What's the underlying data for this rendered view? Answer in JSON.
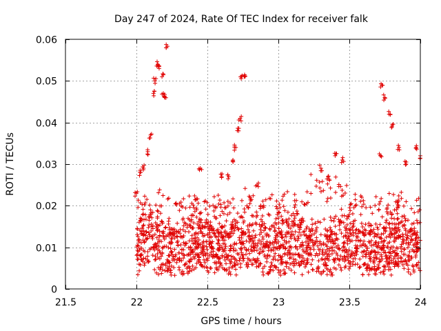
{
  "chart_data": {
    "type": "scatter",
    "title": "Day 247 of 2024, Rate Of TEC Index for receiver falk",
    "xlabel": "GPS time / hours",
    "ylabel": "ROTI / TECUs",
    "xlim": [
      21.5,
      24
    ],
    "ylim": [
      0,
      0.06
    ],
    "xticks": [
      21.5,
      22,
      22.5,
      23,
      23.5,
      24
    ],
    "xtick_labels": [
      "21.5",
      "22",
      "22.5",
      "23",
      "23.5",
      "24"
    ],
    "yticks": [
      0,
      0.01,
      0.02,
      0.03,
      0.04,
      0.05,
      0.06
    ],
    "ytick_labels": [
      "0",
      "0.01",
      "0.02",
      "0.03",
      "0.04",
      "0.05",
      "0.06"
    ],
    "grid": true,
    "marker": "+",
    "color": "#e00000",
    "highlights": [
      {
        "x": [
          [
            22.0,
            0.023
          ],
          [
            22.03,
            0.028
          ],
          [
            22.05,
            0.029
          ],
          [
            22.08,
            0.033
          ],
          [
            22.1,
            0.037
          ],
          [
            22.12,
            0.047
          ],
          [
            22.13,
            0.05
          ],
          [
            22.15,
            0.054
          ],
          [
            22.16,
            0.053
          ],
          [
            22.18,
            0.051
          ],
          [
            22.19,
            0.047
          ],
          [
            22.2,
            0.046
          ],
          [
            22.21,
            0.058
          ]
        ]
      },
      {
        "x": [
          [
            22.45,
            0.029
          ],
          [
            22.6,
            0.027
          ],
          [
            22.65,
            0.027
          ],
          [
            22.68,
            0.031
          ],
          [
            22.7,
            0.034
          ],
          [
            22.72,
            0.038
          ],
          [
            22.73,
            0.041
          ],
          [
            22.74,
            0.051
          ],
          [
            22.76,
            0.051
          ],
          [
            22.8,
            0.022
          ],
          [
            22.85,
            0.025
          ]
        ]
      },
      {
        "x": [
          [
            23.3,
            0.029
          ],
          [
            23.35,
            0.027
          ],
          [
            23.4,
            0.032
          ],
          [
            23.45,
            0.031
          ],
          [
            23.72,
            0.032
          ],
          [
            23.73,
            0.049
          ],
          [
            23.75,
            0.046
          ],
          [
            23.78,
            0.042
          ],
          [
            23.8,
            0.039
          ],
          [
            23.85,
            0.034
          ],
          [
            23.9,
            0.03
          ],
          [
            23.97,
            0.034
          ],
          [
            24.0,
            0.032
          ]
        ]
      }
    ]
  }
}
